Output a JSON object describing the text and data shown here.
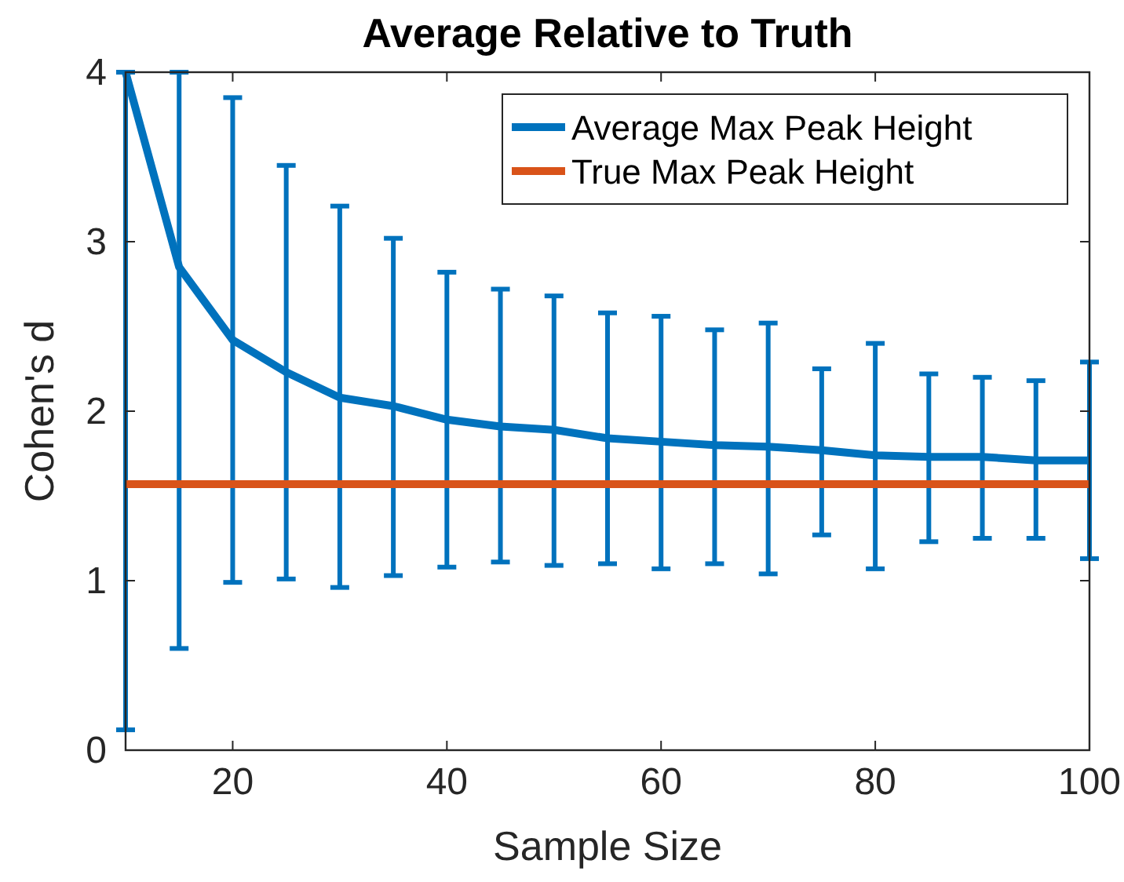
{
  "chart_data": {
    "type": "line",
    "title": "Average Relative to Truth",
    "xlabel": "Sample Size",
    "ylabel": "Cohen's d",
    "x": [
      10,
      15,
      20,
      25,
      30,
      35,
      40,
      45,
      50,
      55,
      60,
      65,
      70,
      75,
      80,
      85,
      90,
      95,
      100
    ],
    "series": [
      {
        "name": "Average Max Peak Height",
        "color": "#0072bd",
        "values": [
          4.0,
          2.85,
          2.42,
          2.23,
          2.08,
          2.03,
          1.95,
          1.91,
          1.89,
          1.84,
          1.82,
          1.8,
          1.79,
          1.77,
          1.74,
          1.73,
          1.73,
          1.71,
          1.71
        ],
        "errors": [
          [
            0.12,
            4
          ],
          [
            0.6,
            4
          ],
          [
            0.99,
            3.85
          ],
          [
            1.01,
            3.45
          ],
          [
            0.96,
            3.21
          ],
          [
            1.03,
            3.02
          ],
          [
            1.08,
            2.82
          ],
          [
            1.11,
            2.72
          ],
          [
            1.09,
            2.68
          ],
          [
            1.1,
            2.58
          ],
          [
            1.07,
            2.56
          ],
          [
            1.1,
            2.48
          ],
          [
            1.04,
            2.52
          ],
          [
            1.27,
            2.25
          ],
          [
            1.07,
            2.4
          ],
          [
            1.23,
            2.22
          ],
          [
            1.25,
            2.2
          ],
          [
            1.25,
            2.18
          ],
          [
            1.13,
            2.29
          ]
        ]
      },
      {
        "name": "True Max Peak Height",
        "color": "#d95319",
        "x": [
          10,
          100
        ],
        "values": [
          1.57,
          1.57
        ]
      }
    ],
    "xlim": [
      10,
      100
    ],
    "xticks": [
      20,
      40,
      60,
      80,
      100
    ],
    "ylim": [
      0,
      4
    ],
    "yticks": [
      0,
      1,
      2,
      3,
      4
    ],
    "grid": false,
    "legend": "top right",
    "marker": "none",
    "line_style": "solid"
  }
}
